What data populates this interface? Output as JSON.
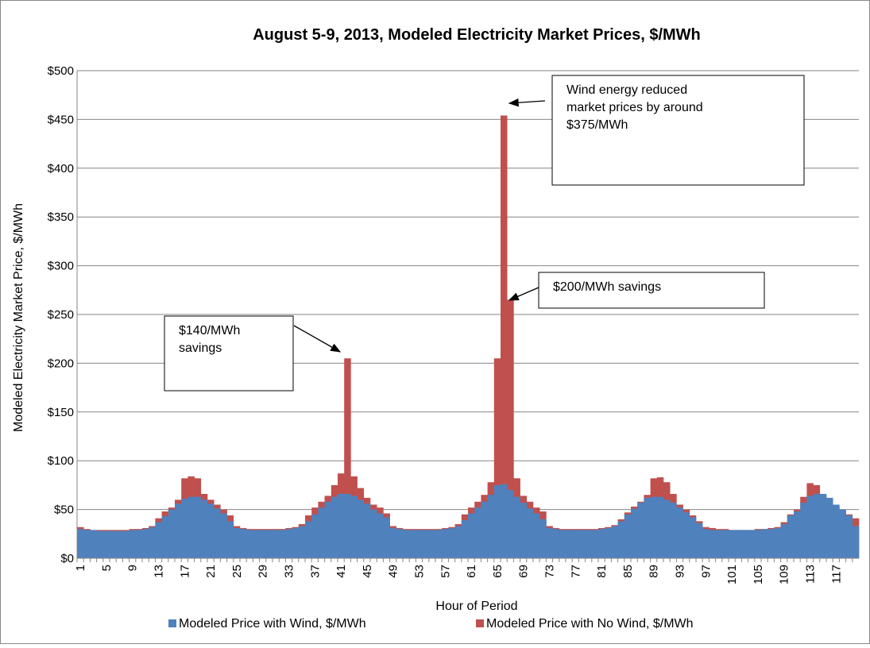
{
  "chart_data": {
    "type": "bar",
    "title": "August 5-9, 2013, Modeled Electricity Market Prices, $/MWh",
    "xlabel": "Hour of Period",
    "ylabel": "Modeled Electricity Market Price, $/MWh",
    "categories": [
      "1",
      null,
      null,
      null,
      "5",
      null,
      null,
      null,
      "9",
      null,
      null,
      null,
      "13",
      null,
      null,
      null,
      "17",
      null,
      null,
      null,
      "21",
      null,
      null,
      null,
      "25",
      null,
      null,
      null,
      "29",
      null,
      null,
      null,
      "33",
      null,
      null,
      null,
      "37",
      null,
      null,
      null,
      "41",
      null,
      null,
      null,
      "45",
      null,
      null,
      null,
      "49",
      null,
      null,
      null,
      "53",
      null,
      null,
      null,
      "57",
      null,
      null,
      null,
      "61",
      null,
      null,
      null,
      "65",
      null,
      null,
      null,
      "69",
      null,
      null,
      null,
      "73",
      null,
      null,
      null,
      "77",
      null,
      null,
      null,
      "81",
      null,
      null,
      null,
      "85",
      null,
      null,
      null,
      "89",
      null,
      null,
      null,
      "93",
      null,
      null,
      null,
      "97",
      null,
      null,
      null,
      "101",
      null,
      null,
      null,
      "105",
      null,
      null,
      null,
      "109",
      null,
      null,
      null,
      "113",
      null,
      null,
      null,
      "117",
      null,
      null,
      null
    ],
    "series": [
      {
        "name": "Modeled Price with No Wind, $/MWh",
        "color": "#c0504d",
        "values": [
          32,
          30,
          29,
          29,
          29,
          29,
          29,
          29,
          30,
          30,
          31,
          33,
          41,
          48,
          52,
          60,
          82,
          84,
          82,
          66,
          60,
          55,
          50,
          44,
          33,
          31,
          30,
          30,
          30,
          30,
          30,
          30,
          31,
          32,
          35,
          44,
          52,
          58,
          64,
          75,
          87,
          205,
          84,
          72,
          62,
          55,
          52,
          46,
          33,
          31,
          30,
          30,
          30,
          30,
          30,
          30,
          31,
          32,
          35,
          45,
          52,
          58,
          65,
          78,
          205,
          454,
          265,
          82,
          64,
          58,
          52,
          48,
          33,
          31,
          30,
          30,
          30,
          30,
          30,
          30,
          31,
          32,
          34,
          40,
          47,
          53,
          58,
          65,
          82,
          83,
          78,
          66,
          55,
          50,
          44,
          38,
          32,
          31,
          30,
          30,
          29,
          29,
          29,
          29,
          30,
          30,
          31,
          32,
          37,
          45,
          50,
          63,
          77,
          75,
          64,
          57,
          52,
          48,
          45,
          41
        ]
      },
      {
        "name": "Modeled Price with Wind, $/MWh",
        "color": "#4f81bd",
        "values": [
          30,
          29,
          29,
          28,
          28,
          28,
          28,
          28,
          29,
          29,
          30,
          32,
          37,
          43,
          50,
          56,
          61,
          63,
          63,
          60,
          56,
          51,
          46,
          38,
          31,
          30,
          29,
          29,
          29,
          29,
          29,
          29,
          30,
          31,
          33,
          38,
          45,
          52,
          58,
          63,
          66,
          66,
          64,
          60,
          56,
          50,
          46,
          42,
          31,
          30,
          29,
          29,
          29,
          29,
          29,
          29,
          30,
          31,
          33,
          39,
          46,
          52,
          58,
          65,
          75,
          76,
          70,
          63,
          57,
          51,
          46,
          40,
          31,
          30,
          29,
          29,
          29,
          29,
          29,
          29,
          30,
          31,
          33,
          38,
          45,
          51,
          57,
          62,
          63,
          63,
          60,
          57,
          52,
          47,
          42,
          36,
          30,
          29,
          29,
          29,
          29,
          29,
          29,
          29,
          29,
          30,
          30,
          31,
          35,
          44,
          48,
          57,
          64,
          66,
          66,
          62,
          55,
          50,
          44,
          33
        ]
      }
    ],
    "legend_order": [
      1,
      0
    ],
    "ylim": [
      0,
      500
    ],
    "yticks": [
      {
        "value": 0,
        "label": "$0"
      },
      {
        "value": 50,
        "label": "$50"
      },
      {
        "value": 100,
        "label": "$100"
      },
      {
        "value": 150,
        "label": "$150"
      },
      {
        "value": 200,
        "label": "$200"
      },
      {
        "value": 250,
        "label": "$250"
      },
      {
        "value": 300,
        "label": "$300"
      },
      {
        "value": 350,
        "label": "$350"
      },
      {
        "value": 400,
        "label": "$400"
      },
      {
        "value": 450,
        "label": "$450"
      },
      {
        "value": 500,
        "label": "$500"
      }
    ],
    "grid": true,
    "annotations": [
      {
        "lines": [
          "Wind energy reduced",
          "market prices by around",
          "$375/MWh"
        ]
      },
      {
        "lines": [
          "$200/MWh savings"
        ]
      },
      {
        "lines": [
          "$140/MWh",
          "savings"
        ]
      }
    ]
  }
}
